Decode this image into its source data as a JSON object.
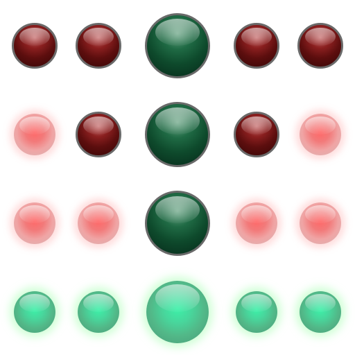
{
  "rows": [
    [
      "red-dark",
      "red-dark",
      "green-dark",
      "red-dark",
      "red-dark"
    ],
    [
      "red-glow",
      "red-dark",
      "green-dark",
      "red-dark",
      "red-glow"
    ],
    [
      "red-glow",
      "red-glow",
      "green-dark",
      "red-glow",
      "red-glow"
    ],
    [
      "green-glow",
      "green-glow",
      "green-glow",
      "green-glow",
      "green-glow"
    ]
  ],
  "colors": {
    "red_on": "#5c0e0e",
    "red_off": "#f27a7a",
    "green_on": "#0e4a2c",
    "green_off": "#48d69c",
    "rim": "#6a6a6a"
  }
}
